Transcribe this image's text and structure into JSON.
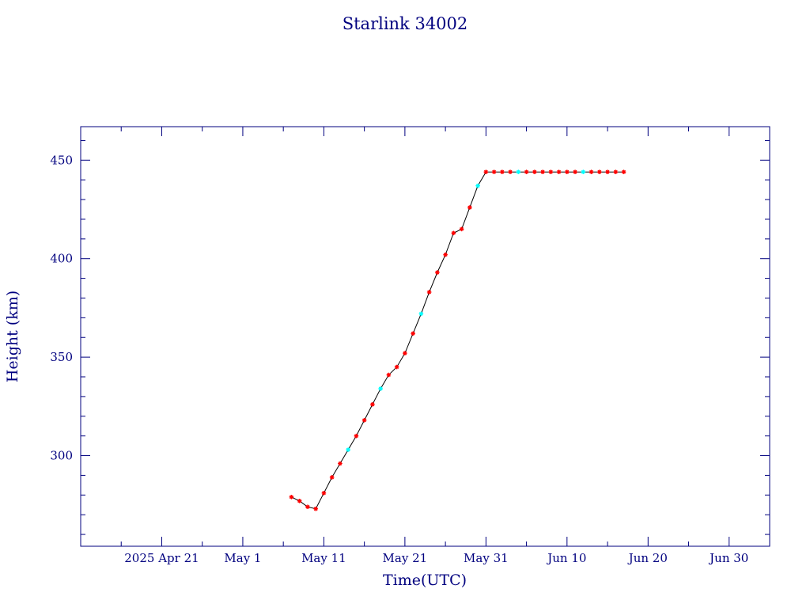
{
  "chart_data": {
    "type": "line",
    "title": "Starlink 34002",
    "xlabel": "Time(UTC)",
    "ylabel": "Height (km)",
    "xlim": [
      "2025-04-11",
      "2025-07-05"
    ],
    "ylim": [
      254,
      467
    ],
    "x_ticks_major": [
      "2025-04-21",
      "2025-05-01",
      "2025-05-11",
      "2025-05-21",
      "2025-05-31",
      "2025-06-10",
      "2025-06-20",
      "2025-06-30"
    ],
    "x_tick_labels": [
      "2025 Apr 21",
      "May  1",
      "May 11",
      "May 21",
      "May 31",
      "Jun 10",
      "Jun 20",
      "Jun 30"
    ],
    "y_ticks_major": [
      300,
      350,
      400,
      450
    ],
    "y_tick_labels": [
      "300",
      "350",
      "400",
      "450"
    ],
    "y_minor_step": 10,
    "x_minor_step_days": 5,
    "grid": false,
    "colors": {
      "frame": "#00007f",
      "line": "#000000",
      "marker_primary": "#ff0000",
      "marker_secondary": "#00ffff"
    },
    "series": [
      {
        "x": [
          "2025-05-07",
          "2025-05-08",
          "2025-05-09",
          "2025-05-10",
          "2025-05-11",
          "2025-05-12",
          "2025-05-13",
          "2025-05-14",
          "2025-05-15",
          "2025-05-16",
          "2025-05-17",
          "2025-05-18",
          "2025-05-19",
          "2025-05-20",
          "2025-05-21",
          "2025-05-22",
          "2025-05-23",
          "2025-05-24",
          "2025-05-25",
          "2025-05-26",
          "2025-05-27",
          "2025-05-28",
          "2025-05-29",
          "2025-05-30",
          "2025-05-31",
          "2025-06-01",
          "2025-06-02",
          "2025-06-03",
          "2025-06-04",
          "2025-06-05",
          "2025-06-06",
          "2025-06-07",
          "2025-06-08",
          "2025-06-09",
          "2025-06-10",
          "2025-06-11",
          "2025-06-12",
          "2025-06-13",
          "2025-06-14",
          "2025-06-15",
          "2025-06-16",
          "2025-06-17"
        ],
        "values": [
          279,
          277,
          274,
          273,
          281,
          289,
          296,
          303,
          310,
          318,
          326,
          334,
          341,
          345,
          352,
          362,
          372,
          383,
          393,
          402,
          413,
          415,
          426,
          437,
          444,
          444,
          444,
          444,
          444,
          444,
          444,
          444,
          444,
          444,
          444,
          444,
          444,
          444,
          444,
          444,
          444,
          444
        ],
        "marker_colors": [
          "#ff0000",
          "#ff0000",
          "#ff0000",
          "#ff0000",
          "#ff0000",
          "#ff0000",
          "#ff0000",
          "#00ffff",
          "#ff0000",
          "#ff0000",
          "#ff0000",
          "#00ffff",
          "#ff0000",
          "#ff0000",
          "#ff0000",
          "#ff0000",
          "#00ffff",
          "#ff0000",
          "#ff0000",
          "#ff0000",
          "#ff0000",
          "#ff0000",
          "#ff0000",
          "#00ffff",
          "#ff0000",
          "#ff0000",
          "#ff0000",
          "#ff0000",
          "#00ffff",
          "#ff0000",
          "#ff0000",
          "#ff0000",
          "#ff0000",
          "#ff0000",
          "#ff0000",
          "#ff0000",
          "#00ffff",
          "#ff0000",
          "#ff0000",
          "#ff0000",
          "#ff0000",
          "#ff0000"
        ]
      }
    ]
  }
}
